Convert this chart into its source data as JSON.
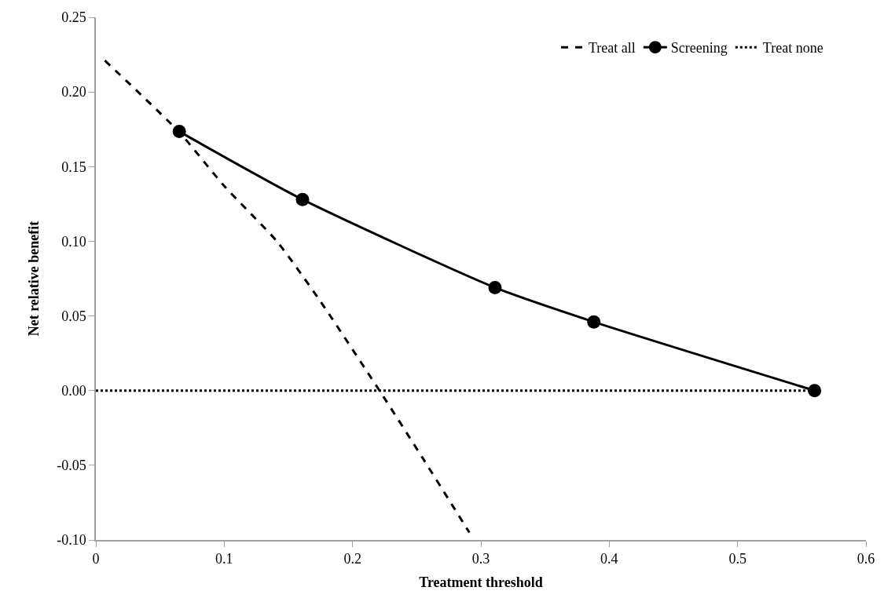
{
  "chart_data": {
    "type": "line",
    "xlabel": "Treatment threshold",
    "ylabel": "Net relative benefit",
    "xlim": [
      0,
      0.6
    ],
    "xticks": [
      0,
      0.1,
      0.2,
      0.3,
      0.4,
      0.5,
      0.6
    ],
    "ylim": [
      -0.1,
      0.25
    ],
    "yticks": [
      {
        "value": -0.1,
        "label": "-0.10"
      },
      {
        "value": -0.05,
        "label": "-0.05"
      },
      {
        "value": 0,
        "label": "0.00"
      },
      {
        "value": 0.05,
        "label": "0.05"
      },
      {
        "value": 0.1,
        "label": "0.10"
      },
      {
        "value": 0.15,
        "label": "0.15"
      },
      {
        "value": 0.2,
        "label": "0.20"
      },
      {
        "value": 0.25,
        "label": "0.25"
      }
    ],
    "grid": false,
    "legend": "top right",
    "series": [
      {
        "name": "Treat all",
        "color": "#000000",
        "line_style": "dashed",
        "marker": "none",
        "x": [
          0.007,
          0.065,
          0.1,
          0.141,
          0.174,
          0.221,
          0.256,
          0.291
        ],
        "values": [
          0.221,
          0.173,
          0.137,
          0.1,
          0.061,
          0,
          -0.047,
          -0.095
        ]
      },
      {
        "name": "Screening",
        "color": "#000000",
        "line_style": "solid",
        "marker": "circle",
        "x": [
          0.065,
          0.161,
          0.311,
          0.388,
          0.56
        ],
        "values": [
          0.1735,
          0.128,
          0.069,
          0.046,
          0
        ]
      },
      {
        "name": "Treat none",
        "color": "#000000",
        "line_style": "dotted",
        "marker": "none",
        "x": [
          0,
          0.56
        ],
        "values": [
          0,
          0
        ]
      }
    ]
  }
}
